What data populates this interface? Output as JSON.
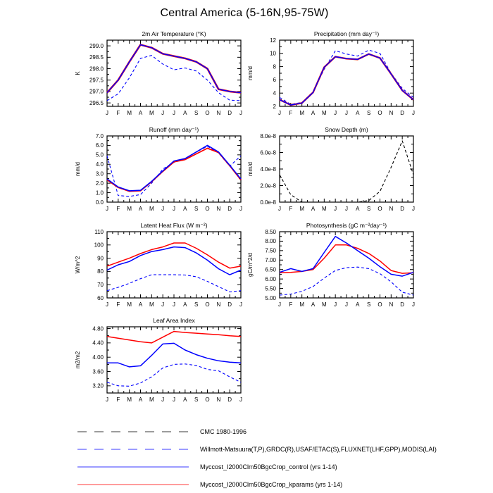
{
  "title": "Central America (5-16N,95-75W)",
  "months": [
    "J",
    "F",
    "M",
    "A",
    "M",
    "J",
    "J",
    "A",
    "S",
    "O",
    "N",
    "D",
    "J"
  ],
  "legend": {
    "entries": [
      {
        "label": "CMC 1980-1996",
        "color": "#000000",
        "style": "dashed"
      },
      {
        "label": "Willmott-Matsuura(T,P),GRDC(R),USAF/ETAC(S),FLUXNET(LHF,GPP),MODIS(LAI)",
        "color": "#0000ff",
        "style": "dashed"
      },
      {
        "label": "Myccost_I2000Clm50BgcCrop_control (yrs 1-14)",
        "color": "#0000ff",
        "style": "solid"
      },
      {
        "label": "Myccost_I2000Clm50BgcCrop_kparams (yrs 1-14)",
        "color": "#ff0000",
        "style": "solid"
      }
    ]
  },
  "chart_data": [
    {
      "id": "air_temperature",
      "type": "line",
      "title": "2m Air Temperature (°K)",
      "ylabel": "K",
      "ylim": [
        296.35,
        299.25
      ],
      "ymajor": 0.5,
      "yticks": [
        296.5,
        297.0,
        297.5,
        298.0,
        298.5,
        299.0
      ],
      "ytick_labels": [
        "296.5",
        "297.0",
        "297.5",
        "298.0",
        "298.5",
        "299.0"
      ],
      "series": [
        {
          "name": "Willmott-Matsuura(T,P),GRDC(R),USAF/ETAC(S),FLUXNET(LHF,GPP),MODIS(LAI)",
          "color": "#0000ff",
          "style": "dashed",
          "width": 1.1,
          "values": [
            296.6,
            296.9,
            297.6,
            298.45,
            298.58,
            298.2,
            297.95,
            298.03,
            297.9,
            297.5,
            296.95,
            296.62,
            296.6
          ]
        },
        {
          "name": "Myccost_I2000Clm50BgcCrop_kparams (yrs 1-14)",
          "color": "#ff0000",
          "style": "solid",
          "width": 2.6,
          "values": [
            296.95,
            297.5,
            298.3,
            299.05,
            298.92,
            298.65,
            298.55,
            298.45,
            298.3,
            298.0,
            297.1,
            297.0,
            296.95
          ]
        },
        {
          "name": "Myccost_I2000Clm50BgcCrop_control (yrs 1-14)",
          "color": "#0000ff",
          "style": "solid",
          "width": 1.5,
          "values": [
            296.95,
            297.5,
            298.3,
            299.05,
            298.92,
            298.65,
            298.55,
            298.45,
            298.3,
            298.0,
            297.1,
            297.0,
            296.95
          ]
        }
      ]
    },
    {
      "id": "precipitation",
      "type": "line",
      "title": "Precipitation (mm day⁻¹)",
      "ylabel": "mm/d",
      "ylim": [
        2,
        12
      ],
      "ymajor": 2,
      "yticks": [
        2,
        4,
        6,
        8,
        10,
        12
      ],
      "ytick_labels": [
        "2",
        "4",
        "6",
        "8",
        "10",
        "12"
      ],
      "series": [
        {
          "name": "Willmott-Matsuura(T,P),GRDC(R),USAF/ETAC(S),FLUXNET(LHF,GPP),MODIS(LAI)",
          "color": "#0000ff",
          "style": "dashed",
          "width": 1.1,
          "values": [
            3.35,
            2.3,
            2.6,
            4.2,
            7.6,
            10.4,
            9.9,
            9.6,
            10.5,
            10.0,
            7.0,
            4.7,
            3.35
          ]
        },
        {
          "name": "Myccost_I2000Clm50BgcCrop_kparams (yrs 1-14)",
          "color": "#ff0000",
          "style": "solid",
          "width": 2.4,
          "values": [
            3.0,
            2.2,
            2.5,
            4.1,
            7.9,
            9.5,
            9.2,
            9.1,
            9.9,
            9.3,
            6.9,
            4.4,
            3.0
          ]
        },
        {
          "name": "Myccost_I2000Clm50BgcCrop_control (yrs 1-14)",
          "color": "#0000ff",
          "style": "solid",
          "width": 1.5,
          "values": [
            3.0,
            2.2,
            2.5,
            4.1,
            7.9,
            9.5,
            9.2,
            9.1,
            9.9,
            9.3,
            6.9,
            4.4,
            3.0
          ]
        }
      ]
    },
    {
      "id": "runoff",
      "type": "line",
      "title": "Runoff (mm day⁻¹)",
      "ylabel": "mm/d",
      "ylim": [
        0,
        7
      ],
      "ymajor": 1,
      "yticks": [
        0,
        1,
        2,
        3,
        4,
        5,
        6,
        7
      ],
      "ytick_labels": [
        "0.0",
        "1.0",
        "2.0",
        "3.0",
        "4.0",
        "5.0",
        "6.0",
        "7.0"
      ],
      "series": [
        {
          "name": "Willmott-Matsuura(T,P),GRDC(R),USAF/ETAC(S),FLUXNET(LHF,GPP),MODIS(LAI)",
          "color": "#0000ff",
          "style": "dashed",
          "width": 1.1,
          "values": [
            4.9,
            0.7,
            0.6,
            0.8,
            2.0,
            3.5,
            4.2,
            4.6,
            5.3,
            5.9,
            5.2,
            3.8,
            4.9
          ]
        },
        {
          "name": "Myccost_I2000Clm50BgcCrop_kparams (yrs 1-14)",
          "color": "#ff0000",
          "style": "solid",
          "width": 1.8,
          "values": [
            2.35,
            1.55,
            1.15,
            1.2,
            2.15,
            3.25,
            4.25,
            4.5,
            5.1,
            5.7,
            5.25,
            3.85,
            2.35
          ]
        },
        {
          "name": "Myccost_I2000Clm50BgcCrop_control (yrs 1-14)",
          "color": "#0000ff",
          "style": "solid",
          "width": 1.6,
          "values": [
            2.45,
            1.6,
            1.2,
            1.25,
            2.2,
            3.3,
            4.35,
            4.6,
            5.3,
            6.0,
            5.3,
            3.9,
            2.45
          ]
        }
      ]
    },
    {
      "id": "snow_depth",
      "type": "line",
      "title": "Snow Depth (m)",
      "ylabel": "mm/d",
      "ylim": [
        0,
        8e-08
      ],
      "ymajor": 2e-08,
      "yticks": [
        0,
        2e-08,
        4e-08,
        6e-08,
        8e-08
      ],
      "ytick_labels": [
        "0.0e-8",
        "2.0e-8",
        "4.0e-8",
        "6.0e-8",
        "8.0e-8"
      ],
      "series": [
        {
          "name": "CMC 1980-1996",
          "color": "#000000",
          "style": "dashed",
          "width": 1.1,
          "values": [
            3.3e-08,
            9e-09,
            0,
            0,
            0,
            0,
            0,
            0,
            2e-09,
            1.3e-08,
            4.2e-08,
            7.4e-08,
            3.3e-08
          ]
        }
      ]
    },
    {
      "id": "latent_heat_flux",
      "type": "line",
      "title": "Latent Heat Flux (W m⁻²)",
      "ylabel": "W/m^2",
      "ylim": [
        60,
        110
      ],
      "ymajor": 10,
      "yticks": [
        60,
        70,
        80,
        90,
        100,
        110
      ],
      "ytick_labels": [
        "60",
        "70",
        "80",
        "90",
        "100",
        "110"
      ],
      "series": [
        {
          "name": "Willmott-Matsuura(T,P),GRDC(R),USAF/ETAC(S),FLUXNET(LHF,GPP),MODIS(LAI)",
          "color": "#0000ff",
          "style": "dashed",
          "width": 1.1,
          "values": [
            65.5,
            68,
            71,
            74.5,
            77.5,
            77.5,
            77.5,
            77.3,
            76,
            72.5,
            68.5,
            64.5,
            65.5
          ]
        },
        {
          "name": "Myccost_I2000Clm50BgcCrop_kparams (yrs 1-14)",
          "color": "#ff0000",
          "style": "solid",
          "width": 1.5,
          "values": [
            84,
            87,
            90,
            93.5,
            96.5,
            98.5,
            101.5,
            101.5,
            97.5,
            92.5,
            87,
            82.5,
            84
          ]
        },
        {
          "name": "Myccost_I2000Clm50BgcCrop_control (yrs 1-14)",
          "color": "#0000ff",
          "style": "solid",
          "width": 1.5,
          "values": [
            81,
            85,
            87.5,
            92,
            95,
            96.5,
            98.5,
            98,
            94,
            88.5,
            82,
            77.5,
            81
          ]
        }
      ]
    },
    {
      "id": "photosynthesis",
      "type": "line",
      "title": "Photosynthesis (gC m⁻²day⁻¹)",
      "ylabel": "gC/m^2/d",
      "ylim": [
        5.0,
        8.5
      ],
      "ymajor": 0.5,
      "yticks": [
        5.0,
        5.5,
        6.0,
        6.5,
        7.0,
        7.5,
        8.0,
        8.5
      ],
      "ytick_labels": [
        "5.00",
        "5.50",
        "6.00",
        "6.50",
        "7.00",
        "7.50",
        "8.00",
        "8.50"
      ],
      "series": [
        {
          "name": "Willmott-Matsuura(T,P),GRDC(R),USAF/ETAC(S),FLUXNET(LHF,GPP),MODIS(LAI)",
          "color": "#0000ff",
          "style": "dashed",
          "width": 1.1,
          "values": [
            5.15,
            5.2,
            5.35,
            5.6,
            6.05,
            6.45,
            6.6,
            6.63,
            6.55,
            6.28,
            5.85,
            5.3,
            5.15
          ]
        },
        {
          "name": "Myccost_I2000Clm50BgcCrop_kparams (yrs 1-14)",
          "color": "#ff0000",
          "style": "solid",
          "width": 1.5,
          "values": [
            6.33,
            6.35,
            6.4,
            6.5,
            7.1,
            7.8,
            7.8,
            7.62,
            7.35,
            6.95,
            6.45,
            6.3,
            6.33
          ]
        },
        {
          "name": "Myccost_I2000Clm50BgcCrop_control (yrs 1-14)",
          "color": "#0000ff",
          "style": "solid",
          "width": 1.5,
          "values": [
            6.35,
            6.55,
            6.4,
            6.55,
            7.4,
            8.25,
            7.9,
            7.5,
            7.1,
            6.65,
            6.25,
            6.15,
            6.35
          ]
        }
      ]
    },
    {
      "id": "leaf_area_index",
      "type": "line",
      "title": "Leaf Area Index",
      "ylabel": "m2/m2",
      "ylim": [
        3.0,
        4.85
      ],
      "ymajor": 0.4,
      "yticks": [
        3.2,
        3.6,
        4.0,
        4.4,
        4.8
      ],
      "ytick_labels": [
        "3.20",
        "3.60",
        "4.00",
        "4.40",
        "4.80"
      ],
      "series": [
        {
          "name": "Willmott-Matsuura(T,P),GRDC(R),USAF/ETAC(S),FLUXNET(LHF,GPP),MODIS(LAI)",
          "color": "#0000ff",
          "style": "dashed",
          "width": 1.1,
          "values": [
            3.3,
            3.2,
            3.19,
            3.28,
            3.45,
            3.7,
            3.8,
            3.81,
            3.77,
            3.66,
            3.62,
            3.45,
            3.3
          ]
        },
        {
          "name": "Myccost_I2000Clm50BgcCrop_kparams (yrs 1-14)",
          "color": "#ff0000",
          "style": "solid",
          "width": 1.5,
          "values": [
            4.58,
            4.53,
            4.48,
            4.43,
            4.4,
            4.56,
            4.72,
            4.69,
            4.67,
            4.65,
            4.63,
            4.6,
            4.58
          ]
        },
        {
          "name": "Myccost_I2000Clm50BgcCrop_control (yrs 1-14)",
          "color": "#0000ff",
          "style": "solid",
          "width": 1.5,
          "values": [
            3.84,
            3.84,
            3.73,
            3.76,
            4.05,
            4.37,
            4.39,
            4.2,
            4.07,
            3.97,
            3.9,
            3.86,
            3.84
          ]
        }
      ]
    }
  ]
}
